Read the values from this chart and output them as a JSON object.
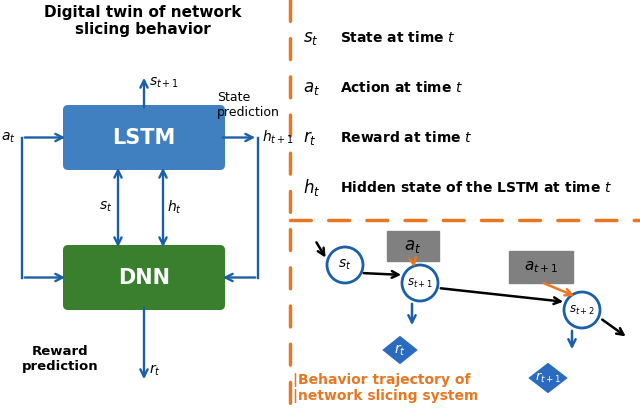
{
  "title_left": "Digital twin of network\nslicing behavior",
  "lstm_label": "LSTM",
  "dnn_label": "DNN",
  "lstm_color": "#4080c0",
  "dnn_color": "#3a7f2e",
  "blue": "#1a5fa8",
  "orange": "#e87722",
  "black": "#000000",
  "gray": "#808080",
  "white": "#ffffff",
  "diamond_color": "#2a6abf",
  "divider_color": "#e87722",
  "legend_symbols": [
    "$s_t$",
    "$a_t$",
    "$r_t$",
    "$h_t$"
  ],
  "legend_descs": [
    "State at time $t$",
    "Action at time $t$",
    "Reward at time $t$",
    "Hidden state of the LSTM at time $t$"
  ],
  "bottom_label_line1": "|Behavior trajectory of",
  "bottom_label_line2": "|network slicing system",
  "background_color": "#ffffff"
}
